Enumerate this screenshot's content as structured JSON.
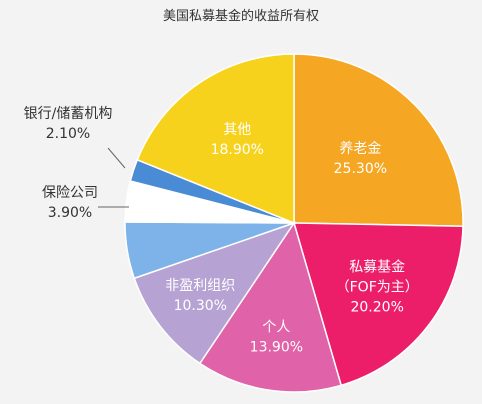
{
  "chart_data": {
    "type": "pie",
    "title": "美国私募基金的收益所有权",
    "slices": [
      {
        "name": "养老金",
        "value": 25.3,
        "value_label": "25.30%",
        "color": "#F5A623"
      },
      {
        "name": "私募基金",
        "sub": "（FOF为主）",
        "value": 20.2,
        "value_label": "20.20%",
        "color": "#EC1E6A"
      },
      {
        "name": "个人",
        "value": 13.9,
        "value_label": "13.90%",
        "color": "#E062A8"
      },
      {
        "name": "非盈利组织",
        "value": 10.3,
        "value_label": "10.30%",
        "color": "#B6A3D4"
      },
      {
        "name": "",
        "value": 5.4,
        "value_label": "",
        "color": "#7DB3E8"
      },
      {
        "name": "保险公司",
        "value": 3.9,
        "value_label": "3.90%",
        "color": "#FFFFFF"
      },
      {
        "name": "银行/储蓄机构",
        "value": 2.1,
        "value_label": "2.10%",
        "color": "#4A8BD6"
      },
      {
        "name": "其他",
        "value": 18.9,
        "value_label": "18.90%",
        "color": "#F7D21C"
      }
    ]
  }
}
